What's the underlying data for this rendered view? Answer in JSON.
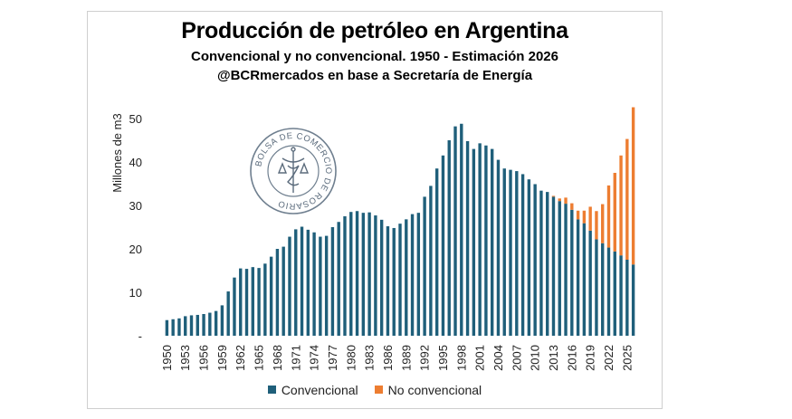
{
  "chart_data": {
    "type": "bar",
    "stacked": true,
    "title": "Producción de petróleo en Argentina",
    "subtitle": "Convencional y no convencional. 1950 - Estimación 2026",
    "source": "@BCRmercados en base a Secretaría de Energía",
    "ylabel": "Millones de m3",
    "xlabel": "",
    "ylim": [
      0,
      55
    ],
    "yticks": [
      0,
      10,
      20,
      30,
      40,
      50
    ],
    "ytick_labels": [
      "-",
      "10",
      "20",
      "30",
      "40",
      "50"
    ],
    "grid": false,
    "legend": "bottom",
    "x": [
      1950,
      1951,
      1952,
      1953,
      1954,
      1955,
      1956,
      1957,
      1958,
      1959,
      1960,
      1961,
      1962,
      1963,
      1964,
      1965,
      1966,
      1967,
      1968,
      1969,
      1970,
      1971,
      1972,
      1973,
      1974,
      1975,
      1976,
      1977,
      1978,
      1979,
      1980,
      1981,
      1982,
      1983,
      1984,
      1985,
      1986,
      1987,
      1988,
      1989,
      1990,
      1991,
      1992,
      1993,
      1994,
      1995,
      1996,
      1997,
      1998,
      1999,
      2000,
      2001,
      2002,
      2003,
      2004,
      2005,
      2006,
      2007,
      2008,
      2009,
      2010,
      2011,
      2012,
      2013,
      2014,
      2015,
      2016,
      2017,
      2018,
      2019,
      2020,
      2021,
      2022,
      2023,
      2024,
      2025,
      2026
    ],
    "xtick_labels": [
      "1950",
      "1953",
      "1956",
      "1959",
      "1962",
      "1965",
      "1968",
      "1971",
      "1974",
      "1977",
      "1980",
      "1983",
      "1986",
      "1989",
      "1992",
      "1995",
      "1998",
      "2001",
      "2004",
      "2007",
      "2010",
      "2013",
      "2016",
      "2019",
      "2022",
      "2025"
    ],
    "series": [
      {
        "name": "Convencional",
        "color": "#1f5f7a",
        "values": [
          3.6,
          3.8,
          4.0,
          4.5,
          4.7,
          4.8,
          5.0,
          5.3,
          5.7,
          7.0,
          10.2,
          13.4,
          15.5,
          15.4,
          15.8,
          15.6,
          16.6,
          18.2,
          20.0,
          20.5,
          22.8,
          24.5,
          25.1,
          24.4,
          23.8,
          22.8,
          23.0,
          25.0,
          26.2,
          27.5,
          28.5,
          28.7,
          28.3,
          28.4,
          27.7,
          26.7,
          25.2,
          24.8,
          25.8,
          26.8,
          28.0,
          28.3,
          32.0,
          34.5,
          38.5,
          41.5,
          45.0,
          48.2,
          48.8,
          44.8,
          43.0,
          44.3,
          43.8,
          43.0,
          40.5,
          38.5,
          38.2,
          37.9,
          37.2,
          36.0,
          34.9,
          33.4,
          33.1,
          32.0,
          31.0,
          30.4,
          29.0,
          26.8,
          25.9,
          24.2,
          22.2,
          21.3,
          20.3,
          19.4,
          18.5,
          17.5,
          16.4
        ]
      },
      {
        "name": "No convencional",
        "color": "#ed7d31",
        "values": [
          0,
          0,
          0,
          0,
          0,
          0,
          0,
          0,
          0,
          0,
          0,
          0,
          0,
          0,
          0,
          0,
          0,
          0,
          0,
          0,
          0,
          0,
          0,
          0,
          0,
          0,
          0,
          0,
          0,
          0,
          0,
          0,
          0,
          0,
          0,
          0,
          0,
          0,
          0,
          0,
          0,
          0,
          0,
          0,
          0,
          0,
          0,
          0,
          0,
          0,
          0,
          0,
          0,
          0,
          0,
          0,
          0,
          0,
          0,
          0,
          0,
          0,
          0,
          0.2,
          0.6,
          1.4,
          1.5,
          2.0,
          2.9,
          5.5,
          6.5,
          9.0,
          14.3,
          18.1,
          23.0,
          27.8,
          36.2
        ]
      }
    ]
  },
  "seal": {
    "ring_text": "BOLSA DE COMERCIO DE ROSARIO",
    "color": "#5b6b7c"
  }
}
